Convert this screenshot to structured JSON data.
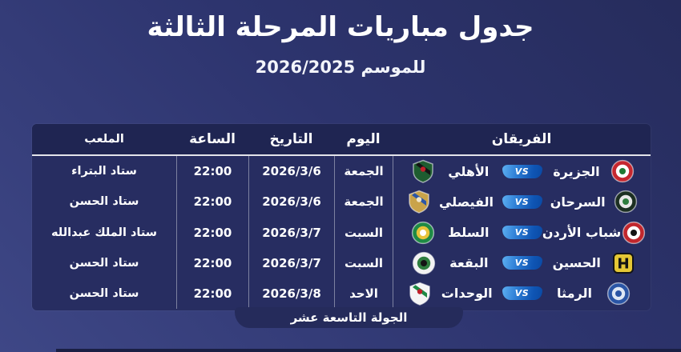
{
  "page": {
    "title": "جدول مباريات المرحلة الثالثة",
    "subtitle": "للموسم 2026/2025",
    "round_badge": "الجولة التاسعة عشر"
  },
  "colors": {
    "background_dark": "#262c5c",
    "background_light": "#3e4786",
    "table_body": "#272d61",
    "table_header": "#1f2552",
    "vs_badge_light": "#5db0f2",
    "vs_badge_dark": "#0a4aa4",
    "text": "#ffffff"
  },
  "table": {
    "headers": {
      "teams": "الفريقان",
      "day": "اليوم",
      "date": "التاريخ",
      "time": "الساعة",
      "stadium": "الملعب"
    },
    "vs_label": "VS",
    "rows": [
      {
        "home": {
          "name": "الجزيرة",
          "logo": {
            "shape": "circle",
            "colors": [
              "#c5272f",
              "#ffffff",
              "#1f7a33"
            ]
          }
        },
        "away": {
          "name": "الأهلي",
          "logo": {
            "shape": "shield",
            "colors": [
              "#1e5c30",
              "#141414",
              "#c0202a"
            ]
          }
        },
        "day": "الجمعة",
        "date": "2026/3/6",
        "time": "22:00",
        "stadium": "ستاد البتراء"
      },
      {
        "home": {
          "name": "السرحان",
          "logo": {
            "shape": "circle",
            "colors": [
              "#1c2f22",
              "#e8e8e8",
              "#2e7d3e"
            ]
          }
        },
        "away": {
          "name": "الفيصلي",
          "logo": {
            "shape": "shield",
            "colors": [
              "#c9a34a",
              "#2b56a8",
              "#f0e6c8"
            ]
          }
        },
        "day": "الجمعة",
        "date": "2026/3/6",
        "time": "22:00",
        "stadium": "ستاد الحسن"
      },
      {
        "home": {
          "name": "شباب الأردن",
          "logo": {
            "shape": "circle",
            "colors": [
              "#c1272d",
              "#ffffff",
              "#141414"
            ]
          }
        },
        "away": {
          "name": "السلط",
          "logo": {
            "shape": "circle",
            "colors": [
              "#1f8a45",
              "#e8c33a",
              "#ffffff"
            ]
          }
        },
        "day": "السبت",
        "date": "2026/3/7",
        "time": "22:00",
        "stadium": "ستاد الملك عبدالله"
      },
      {
        "home": {
          "name": "الحسين",
          "logo": {
            "shape": "square",
            "colors": [
              "#e5c735",
              "#141414",
              "#e5c735"
            ]
          }
        },
        "away": {
          "name": "البقعة",
          "logo": {
            "shape": "circle",
            "colors": [
              "#f2f2f2",
              "#2e7d3e",
              "#141414"
            ]
          }
        },
        "day": "السبت",
        "date": "2026/3/7",
        "time": "22:00",
        "stadium": "ستاد الحسن"
      },
      {
        "home": {
          "name": "الرمثا",
          "logo": {
            "shape": "circle",
            "colors": [
              "#2a55a5",
              "#dfe8f5",
              "#2a55a5"
            ]
          }
        },
        "away": {
          "name": "الوحدات",
          "logo": {
            "shape": "shield",
            "colors": [
              "#f5f5f5",
              "#1f8a45",
              "#c0202a"
            ]
          }
        },
        "day": "الاحد",
        "date": "2026/3/8",
        "time": "22:00",
        "stadium": "ستاد الحسن"
      }
    ]
  },
  "chart_data": {
    "type": "table",
    "title": "جدول مباريات المرحلة الثالثة",
    "subtitle": "للموسم 2026/2025",
    "footer": "الجولة التاسعة عشر",
    "columns": [
      "الفريقان",
      "اليوم",
      "التاريخ",
      "الساعة",
      "الملعب"
    ],
    "rows": [
      [
        "الجزيرة vs الأهلي",
        "الجمعة",
        "2026/3/6",
        "22:00",
        "ستاد البتراء"
      ],
      [
        "السرحان vs الفيصلي",
        "الجمعة",
        "2026/3/6",
        "22:00",
        "ستاد الحسن"
      ],
      [
        "شباب الأردن vs السلط",
        "السبت",
        "2026/3/7",
        "22:00",
        "ستاد الملك عبدالله"
      ],
      [
        "الحسين vs البقعة",
        "السبت",
        "2026/3/7",
        "22:00",
        "ستاد الحسن"
      ],
      [
        "الرمثا vs الوحدات",
        "الاحد",
        "2026/3/8",
        "22:00",
        "ستاد الحسن"
      ]
    ]
  }
}
